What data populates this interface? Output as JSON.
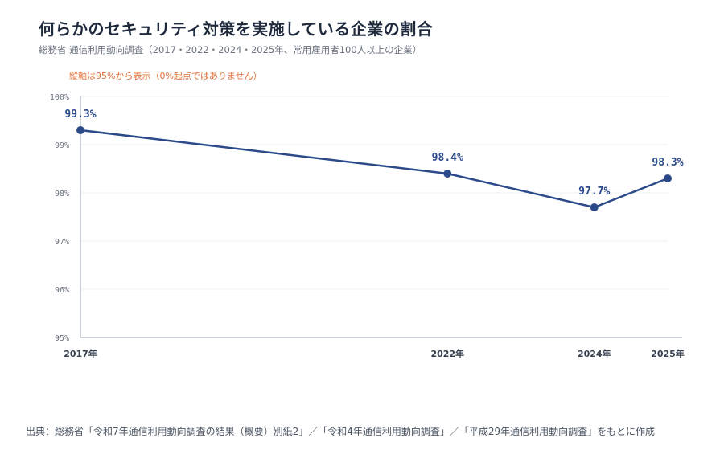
{
  "header": {
    "title": "何らかのセキュリティ対策を実施している企業の割合",
    "subtitle": "総務省 通信利用動向調査（2017・2022・2024・2025年、常用雇用者100人以上の企業）",
    "note": "縦軸は95%から表示（0%起点ではありません）"
  },
  "footer": {
    "source": "出典：総務省「令和7年通信利用動向調査の結果（概要）別紙2」／「令和4年通信利用動向調査」／「平成29年通信利用動向調査」をもとに作成"
  },
  "colors": {
    "series": "#2c4a8a",
    "note": "#e0703a",
    "grid": "#eceff3",
    "axis": "#9aa3b2"
  },
  "chart_data": {
    "type": "line",
    "x": [
      2017,
      2022,
      2024,
      2025
    ],
    "x_tick_labels": [
      "2017年",
      "2022年",
      "2024年",
      "2025年"
    ],
    "y": [
      99.3,
      98.4,
      97.7,
      98.3
    ],
    "data_labels": [
      "99.3%",
      "98.4%",
      "97.7%",
      "98.3%"
    ],
    "ylim": [
      95,
      100
    ],
    "y_ticks": [
      95,
      96,
      97,
      98,
      99,
      100
    ],
    "y_tick_labels": [
      "95%",
      "96%",
      "97%",
      "98%",
      "99%",
      "100%"
    ],
    "grid": true,
    "xlabel": "",
    "ylabel": ""
  }
}
